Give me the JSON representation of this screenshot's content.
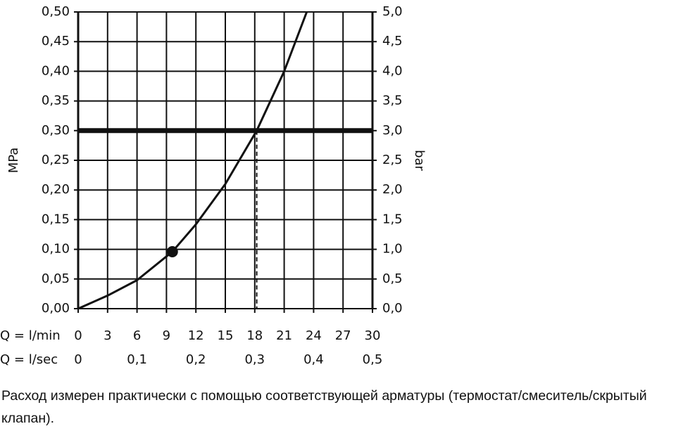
{
  "chart_data": {
    "type": "line",
    "x_label": "Q = l/min",
    "x2_label": "Q = l/sec",
    "y_label": "MPa",
    "y2_label": "bar",
    "x": [
      0,
      3,
      6,
      9.6,
      12,
      15,
      18.2,
      21,
      23.3
    ],
    "series": [
      {
        "color": "#111111",
        "values": [
          0,
          0.022,
          0.048,
          0.096,
          0.142,
          0.21,
          0.3,
          0.4,
          0.5
        ]
      }
    ],
    "marker": {
      "x": 9.6,
      "y": 0.096
    },
    "hline": 0.3,
    "vline": 18.2,
    "xlim": [
      0,
      30
    ],
    "xticks": [
      0,
      3,
      6,
      9,
      12,
      15,
      18,
      21,
      24,
      27,
      30
    ],
    "x2lim": [
      0,
      0.5
    ],
    "x2ticks": [
      0,
      {
        "value": 0.1,
        "label": "0,1"
      },
      {
        "value": 0.2,
        "label": "0,2"
      },
      {
        "value": 0.3,
        "label": "0,3"
      },
      {
        "value": 0.4,
        "label": "0,4"
      },
      {
        "value": 0.5,
        "label": "0,5"
      }
    ],
    "ylim": [
      0,
      0.5
    ],
    "yticks": [
      {
        "value": 0,
        "label": "0,00"
      },
      {
        "value": 0.05,
        "label": "0,05"
      },
      {
        "value": 0.1,
        "label": "0,10"
      },
      {
        "value": 0.15,
        "label": "0,15"
      },
      {
        "value": 0.2,
        "label": "0,20"
      },
      {
        "value": 0.25,
        "label": "0,25"
      },
      {
        "value": 0.3,
        "label": "0,30"
      },
      {
        "value": 0.35,
        "label": "0,35"
      },
      {
        "value": 0.4,
        "label": "0,40"
      },
      {
        "value": 0.45,
        "label": "0,45"
      },
      {
        "value": 0.5,
        "label": "0,50"
      }
    ],
    "y2lim": [
      0,
      5
    ],
    "y2ticks": [
      {
        "value": 0,
        "label": "0,0"
      },
      {
        "value": 0.5,
        "label": "0,5"
      },
      {
        "value": 1,
        "label": "1,0"
      },
      {
        "value": 1.5,
        "label": "1,5"
      },
      {
        "value": 2,
        "label": "2,0"
      },
      {
        "value": 2.5,
        "label": "2,5"
      },
      {
        "value": 3,
        "label": "3,0"
      },
      {
        "value": 3.5,
        "label": "3,5"
      },
      {
        "value": 4,
        "label": "4,0"
      },
      {
        "value": 4.5,
        "label": "4,5"
      },
      {
        "value": 5,
        "label": "5,0"
      }
    ],
    "grid": true,
    "note": "Расход измерен практически с помощью соответствующей арматуры (термостат/смеситель/скрытый клапан)."
  }
}
